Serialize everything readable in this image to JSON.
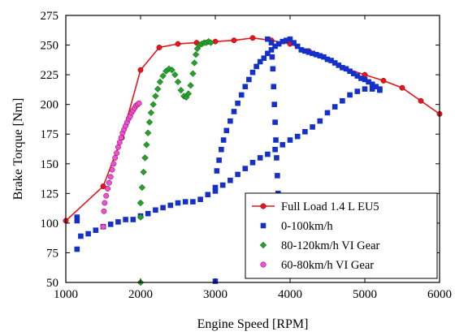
{
  "chart_data": {
    "type": "scatter",
    "title": "",
    "xlabel": "Engine Speed [RPM]",
    "ylabel": "Brake Torque [Nm]",
    "xlim": [
      1000,
      6000
    ],
    "ylim": [
      50,
      275
    ],
    "xticks": [
      1000,
      2000,
      3000,
      4000,
      5000,
      6000
    ],
    "yticks": [
      50,
      75,
      100,
      125,
      150,
      175,
      200,
      225,
      250,
      275
    ],
    "grid": false,
    "legend_position": "bottom-right",
    "series": [
      {
        "name": "Full  Load 1.4 L EU5",
        "color": "#e8141c",
        "marker": "circle",
        "line": true,
        "points": [
          [
            1000,
            102
          ],
          [
            1500,
            131
          ],
          [
            1750,
            172
          ],
          [
            2000,
            229
          ],
          [
            2250,
            248
          ],
          [
            2500,
            251
          ],
          [
            2750,
            252
          ],
          [
            3000,
            253
          ],
          [
            3250,
            254
          ],
          [
            3500,
            256
          ],
          [
            3750,
            254
          ],
          [
            4000,
            251
          ],
          [
            4250,
            245
          ],
          [
            4500,
            238
          ],
          [
            4750,
            230
          ],
          [
            5000,
            225
          ],
          [
            5250,
            220
          ],
          [
            5500,
            214
          ],
          [
            5750,
            203
          ],
          [
            6000,
            192
          ]
        ]
      },
      {
        "name": "0-100km/h",
        "color": "#1530c8",
        "marker": "square",
        "line": false,
        "points": [
          [
            1150,
            78
          ],
          [
            1150,
            102
          ],
          [
            1150,
            105
          ],
          [
            1200,
            89
          ],
          [
            1300,
            91
          ],
          [
            1400,
            94
          ],
          [
            1500,
            97
          ],
          [
            1600,
            99
          ],
          [
            1700,
            101
          ],
          [
            1800,
            103
          ],
          [
            1900,
            103
          ],
          [
            2000,
            106
          ],
          [
            2100,
            108
          ],
          [
            2200,
            111
          ],
          [
            2300,
            113
          ],
          [
            2400,
            115
          ],
          [
            2500,
            117
          ],
          [
            2600,
            118
          ],
          [
            2700,
            118
          ],
          [
            2800,
            120
          ],
          [
            2900,
            124
          ],
          [
            3000,
            127
          ],
          [
            3100,
            132
          ],
          [
            3200,
            136
          ],
          [
            3300,
            141
          ],
          [
            3400,
            146
          ],
          [
            3500,
            151
          ],
          [
            3600,
            155
          ],
          [
            3700,
            158
          ],
          [
            3800,
            162
          ],
          [
            3900,
            166
          ],
          [
            4000,
            170
          ],
          [
            4100,
            173
          ],
          [
            4200,
            177
          ],
          [
            4300,
            181
          ],
          [
            4400,
            186
          ],
          [
            4500,
            193
          ],
          [
            4600,
            198
          ],
          [
            4700,
            203
          ],
          [
            4800,
            208
          ],
          [
            4900,
            211
          ],
          [
            5000,
            213
          ],
          [
            5100,
            213
          ],
          [
            5200,
            212
          ],
          [
            3000,
            51
          ],
          [
            3000,
            130
          ],
          [
            3020,
            144
          ],
          [
            3050,
            153
          ],
          [
            3080,
            162
          ],
          [
            3110,
            170
          ],
          [
            3150,
            178
          ],
          [
            3200,
            186
          ],
          [
            3250,
            194
          ],
          [
            3300,
            201
          ],
          [
            3350,
            208
          ],
          [
            3400,
            215
          ],
          [
            3450,
            221
          ],
          [
            3500,
            227
          ],
          [
            3550,
            232
          ],
          [
            3600,
            236
          ],
          [
            3650,
            239
          ],
          [
            3700,
            243
          ],
          [
            3750,
            246
          ],
          [
            3800,
            249
          ],
          [
            3850,
            251
          ],
          [
            3900,
            253
          ],
          [
            3950,
            254
          ],
          [
            4000,
            255
          ],
          [
            4050,
            252
          ],
          [
            4100,
            249
          ],
          [
            4150,
            246
          ],
          [
            4200,
            245
          ],
          [
            4250,
            244
          ],
          [
            4300,
            243
          ],
          [
            4350,
            242
          ],
          [
            4400,
            241
          ],
          [
            4450,
            240
          ],
          [
            4500,
            238
          ],
          [
            4550,
            237
          ],
          [
            4600,
            235
          ],
          [
            4650,
            233
          ],
          [
            4700,
            231
          ],
          [
            4750,
            230
          ],
          [
            4800,
            228
          ],
          [
            4850,
            226
          ],
          [
            4900,
            224
          ],
          [
            4950,
            222
          ],
          [
            5000,
            221
          ],
          [
            5050,
            219
          ],
          [
            5100,
            217
          ],
          [
            5150,
            215
          ],
          [
            5200,
            213
          ],
          [
            3700,
            255
          ],
          [
            3750,
            252
          ],
          [
            3760,
            240
          ],
          [
            3770,
            230
          ],
          [
            3780,
            215
          ],
          [
            3790,
            200
          ],
          [
            3800,
            185
          ],
          [
            3810,
            170
          ],
          [
            3820,
            155
          ],
          [
            3830,
            140
          ],
          [
            3840,
            125
          ],
          [
            3850,
            110
          ],
          [
            3860,
            100
          ]
        ]
      },
      {
        "name": "80-120km/h VI Gear",
        "color": "#25a02a",
        "marker": "diamond",
        "line": false,
        "points": [
          [
            2000,
            50
          ],
          [
            2000,
            105
          ],
          [
            2000,
            117
          ],
          [
            2020,
            130
          ],
          [
            2040,
            143
          ],
          [
            2060,
            155
          ],
          [
            2080,
            166
          ],
          [
            2100,
            176
          ],
          [
            2120,
            185
          ],
          [
            2140,
            193
          ],
          [
            2170,
            200
          ],
          [
            2200,
            207
          ],
          [
            2230,
            213
          ],
          [
            2260,
            219
          ],
          [
            2300,
            224
          ],
          [
            2340,
            228
          ],
          [
            2380,
            230
          ],
          [
            2420,
            229
          ],
          [
            2460,
            225
          ],
          [
            2500,
            219
          ],
          [
            2540,
            212
          ],
          [
            2580,
            207
          ],
          [
            2610,
            206
          ],
          [
            2640,
            209
          ],
          [
            2670,
            216
          ],
          [
            2700,
            226
          ],
          [
            2720,
            235
          ],
          [
            2740,
            242
          ],
          [
            2760,
            247
          ],
          [
            2790,
            250
          ],
          [
            2820,
            251
          ],
          [
            2850,
            252
          ],
          [
            2880,
            252
          ],
          [
            2910,
            253
          ],
          [
            2940,
            252
          ]
        ]
      },
      {
        "name": "60-80km/h VI Gear",
        "color": "#f04ce0",
        "marker": "circle",
        "line": false,
        "points": [
          [
            1500,
            97
          ],
          [
            1510,
            110
          ],
          [
            1520,
            117
          ],
          [
            1540,
            123
          ],
          [
            1560,
            129
          ],
          [
            1580,
            134
          ],
          [
            1600,
            139
          ],
          [
            1620,
            145
          ],
          [
            1640,
            150
          ],
          [
            1660,
            155
          ],
          [
            1680,
            159
          ],
          [
            1700,
            164
          ],
          [
            1720,
            168
          ],
          [
            1740,
            172
          ],
          [
            1760,
            176
          ],
          [
            1780,
            179
          ],
          [
            1800,
            182
          ],
          [
            1820,
            185
          ],
          [
            1840,
            188
          ],
          [
            1860,
            190
          ],
          [
            1880,
            193
          ],
          [
            1900,
            195
          ],
          [
            1920,
            197
          ],
          [
            1940,
            199
          ],
          [
            1960,
            200
          ],
          [
            1980,
            201
          ]
        ]
      }
    ]
  }
}
